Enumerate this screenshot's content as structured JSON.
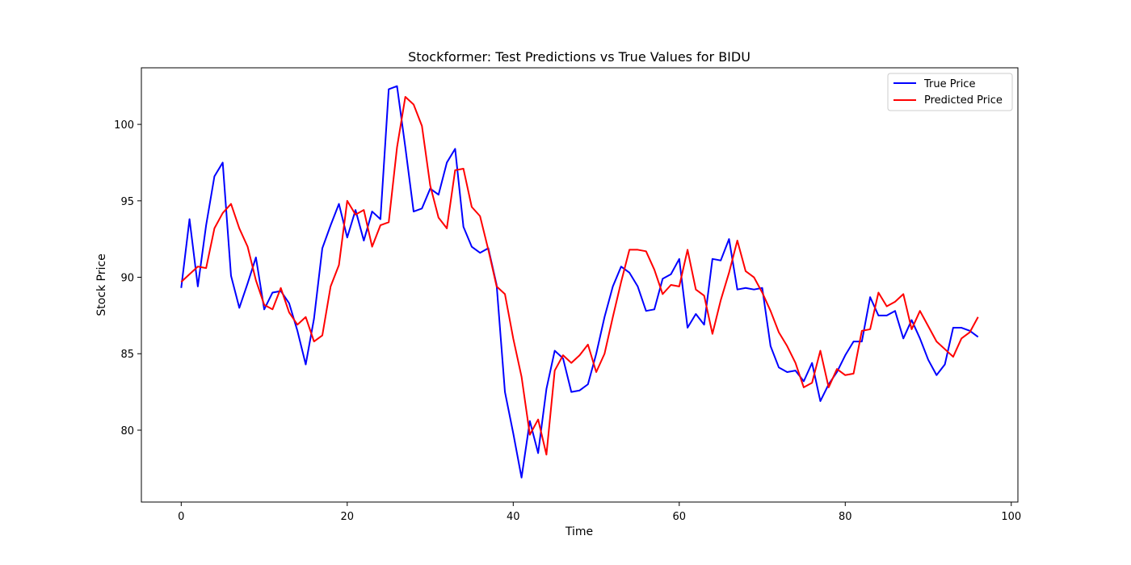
{
  "chart_data": {
    "type": "line",
    "title": "Stockformer: Test Predictions vs True Values for BIDU",
    "xlabel": "Time",
    "ylabel": "Stock Price",
    "xlim": [
      -4.8,
      100.8
    ],
    "ylim": [
      75.3,
      103.7
    ],
    "xticks": [
      0,
      20,
      40,
      60,
      80,
      100
    ],
    "yticks": [
      80,
      85,
      90,
      95,
      100
    ],
    "grid": false,
    "legend_position": "top-right",
    "x": [
      0,
      1,
      2,
      3,
      4,
      5,
      6,
      7,
      8,
      9,
      10,
      11,
      12,
      13,
      14,
      15,
      16,
      17,
      18,
      19,
      20,
      21,
      22,
      23,
      24,
      25,
      26,
      27,
      28,
      29,
      30,
      31,
      32,
      33,
      34,
      35,
      36,
      37,
      38,
      39,
      40,
      41,
      42,
      43,
      44,
      45,
      46,
      47,
      48,
      49,
      50,
      51,
      52,
      53,
      54,
      55,
      56,
      57,
      58,
      59,
      60,
      61,
      62,
      63,
      64,
      65,
      66,
      67,
      68,
      69,
      70,
      71,
      72,
      73,
      74,
      75,
      76,
      77,
      78,
      79,
      80,
      81,
      82,
      83,
      84,
      85,
      86,
      87,
      88,
      89,
      90,
      91,
      92,
      93,
      94,
      95,
      96
    ],
    "series": [
      {
        "name": "True Price",
        "color": "#0000ff",
        "values": [
          89.3,
          93.8,
          89.4,
          93.4,
          96.6,
          97.5,
          90.1,
          88.0,
          89.6,
          91.3,
          87.9,
          89.0,
          89.1,
          88.3,
          86.5,
          84.3,
          87.3,
          91.9,
          93.4,
          94.8,
          92.6,
          94.4,
          92.4,
          94.3,
          93.8,
          102.3,
          102.5,
          98.5,
          94.3,
          94.5,
          95.8,
          95.4,
          97.5,
          98.4,
          93.3,
          92.0,
          91.6,
          91.9,
          89.5,
          82.5,
          79.8,
          76.9,
          80.6,
          78.5,
          82.7,
          85.2,
          84.7,
          82.5,
          82.6,
          83.0,
          85.0,
          87.4,
          89.4,
          90.7,
          90.3,
          89.4,
          87.8,
          87.9,
          89.9,
          90.2,
          91.2,
          86.7,
          87.6,
          86.9,
          91.2,
          91.1,
          92.5,
          89.2,
          89.3,
          89.2,
          89.3,
          85.5,
          84.1,
          83.8,
          83.9,
          83.2,
          84.4,
          81.9,
          83.0,
          83.8,
          84.9,
          85.8,
          85.8,
          88.7,
          87.5,
          87.5,
          87.8,
          86.0,
          87.2,
          86.0,
          84.6,
          83.6,
          84.3,
          86.7,
          86.7,
          86.5,
          86.1
        ]
      },
      {
        "name": "Predicted Price",
        "color": "#ff0000",
        "values": [
          89.7,
          90.2,
          90.7,
          90.6,
          93.2,
          94.2,
          94.8,
          93.2,
          92.0,
          89.8,
          88.2,
          87.9,
          89.3,
          87.7,
          86.9,
          87.4,
          85.8,
          86.2,
          89.4,
          90.8,
          95.0,
          94.1,
          94.4,
          92.0,
          93.4,
          93.6,
          98.5,
          101.8,
          101.3,
          99.9,
          96.0,
          93.9,
          93.2,
          97.0,
          97.1,
          94.6,
          94.0,
          91.8,
          89.4,
          88.9,
          86.0,
          83.5,
          79.7,
          80.7,
          78.4,
          83.9,
          84.9,
          84.4,
          84.9,
          85.6,
          83.8,
          85.0,
          87.4,
          89.7,
          91.8,
          91.8,
          91.7,
          90.5,
          88.9,
          89.5,
          89.4,
          91.8,
          89.2,
          88.8,
          86.3,
          88.5,
          90.3,
          92.4,
          90.4,
          90.0,
          89.0,
          87.8,
          86.4,
          85.5,
          84.4,
          82.8,
          83.1,
          85.2,
          82.8,
          84.0,
          83.6,
          83.7,
          86.5,
          86.6,
          89.0,
          88.1,
          88.4,
          88.9,
          86.6,
          87.8,
          86.8,
          85.8,
          85.3,
          84.8,
          86.0,
          86.4,
          87.4
        ]
      }
    ]
  }
}
